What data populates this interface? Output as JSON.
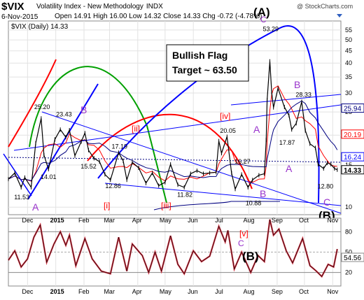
{
  "header": {
    "symbol": "$VIX",
    "name": "Volatility Index - New Methodology",
    "exchange": "INDX",
    "date": "6-Nov-2015",
    "ohlc": "Open 14.91  High 16.00  Low 14.32  Close 14.33  Chg -0.72 (-4.78%)",
    "watermark": "@ StockCharts.com",
    "legend": "$VIX (Daily) 14.33"
  },
  "colors": {
    "price": "#000000",
    "blue": "#0000ff",
    "red": "#ff0000",
    "green": "#00a000",
    "navy": "#000080",
    "annot": "#9933cc",
    "osc": "#d03040"
  },
  "annotations": {
    "box_line1": "Bullish Flag",
    "box_line2": "Target ~ 63.50",
    "wave_A_big": "(A)",
    "wave_B_big": "(B)",
    "wave_B_osc": "(B)",
    "wave_C_top": "C",
    "wave_B_sep": "B",
    "wave_B_dec": "B",
    "wave_A_nov": "A",
    "wave_A_jul": "A",
    "wave_B_aug": "B",
    "wave_A_oct": "A",
    "wave_C_nov": "C",
    "wave_v_osc": "[v]",
    "wave_C_osc": "C",
    "w_i": "[i]",
    "w_ii": "[ii]",
    "w_iii": "[iii]",
    "w_iv": "[iv]"
  },
  "price_labels": [
    {
      "text": "25.20",
      "x": "2014-12-16",
      "y": 25.2
    },
    {
      "text": "23.43",
      "x": "2015-01-09",
      "y": 23.43
    },
    {
      "text": "15.52",
      "x": "2015-02-05",
      "y": 15.52
    },
    {
      "text": "14.01",
      "x": "2014-12-23",
      "y": 14.01
    },
    {
      "text": "11.53",
      "x": "2014-11-24",
      "y": 11.53
    },
    {
      "text": "12.86",
      "x": "2015-03-04",
      "y": 12.86
    },
    {
      "text": "17.19",
      "x": "2015-03-11",
      "y": 17.19
    },
    {
      "text": "11.82",
      "x": "2015-05-22",
      "y": 11.82
    },
    {
      "text": "20.05",
      "x": "2015-07-08",
      "y": 20.05
    },
    {
      "text": "16.27",
      "x": "2015-07-24",
      "y": 16.27
    },
    {
      "text": "10.88",
      "x": "2015-08-05",
      "y": 10.88
    },
    {
      "text": "53.29",
      "x": "2015-08-24",
      "y": 53.29
    },
    {
      "text": "28.33",
      "x": "2015-09-29",
      "y": 28.33
    },
    {
      "text": "17.87",
      "x": "2015-09-11",
      "y": 17.87
    },
    {
      "text": "12.80",
      "x": "2015-10-23",
      "y": 12.8
    }
  ],
  "right_labels": [
    {
      "text": "25.94",
      "y": 25.94,
      "color": "#000080",
      "bg": "#ffffff"
    },
    {
      "text": "20.19",
      "y": 20.19,
      "color": "#ff0000",
      "bg": "#ffffff"
    },
    {
      "text": "16.24",
      "y": 16.24,
      "color": "#0000ff",
      "bg": "#ffffff"
    },
    {
      "text": "14.33",
      "y": 14.33,
      "color": "#000000",
      "bg": "#ffffff"
    }
  ],
  "osc_right_label": "54.56",
  "x_ticks": [
    "Dec",
    "2015",
    "Feb",
    "Mar",
    "Apr",
    "May",
    "Jun",
    "Jul",
    "Aug",
    "Sep",
    "Oct",
    "Nov"
  ],
  "chart_data": {
    "type": "line",
    "title": "$VIX Volatility Index - New Methodology INDX",
    "xlabel": "",
    "ylabel": "",
    "y_scale": "log",
    "ylim": [
      9.3,
      60
    ],
    "y_ticks": [
      10,
      15,
      20,
      25,
      30,
      35,
      40,
      45,
      50,
      55
    ],
    "grid": true,
    "x_range": [
      "2014-11-10",
      "2015-11-10"
    ],
    "series": [
      {
        "name": "$VIX (Daily)",
        "points": [
          [
            "2014-11-10",
            13.1
          ],
          [
            "2014-11-17",
            13.9
          ],
          [
            "2014-11-24",
            12.1
          ],
          [
            "2014-11-28",
            13.3
          ],
          [
            "2014-12-05",
            12.1
          ],
          [
            "2014-12-10",
            18.5
          ],
          [
            "2014-12-16",
            23.5
          ],
          [
            "2014-12-19",
            16.5
          ],
          [
            "2014-12-24",
            14.4
          ],
          [
            "2014-12-31",
            19.2
          ],
          [
            "2015-01-06",
            21.1
          ],
          [
            "2015-01-12",
            19.6
          ],
          [
            "2015-01-16",
            21.0
          ],
          [
            "2015-01-22",
            16.4
          ],
          [
            "2015-01-29",
            18.8
          ],
          [
            "2015-02-02",
            20.4
          ],
          [
            "2015-02-06",
            17.3
          ],
          [
            "2015-02-12",
            16.0
          ],
          [
            "2015-02-18",
            15.5
          ],
          [
            "2015-02-24",
            13.7
          ],
          [
            "2015-03-02",
            13.0
          ],
          [
            "2015-03-11",
            16.9
          ],
          [
            "2015-03-16",
            15.6
          ],
          [
            "2015-03-20",
            13.0
          ],
          [
            "2015-03-26",
            15.4
          ],
          [
            "2015-04-02",
            14.6
          ],
          [
            "2015-04-10",
            12.6
          ],
          [
            "2015-04-17",
            13.9
          ],
          [
            "2015-04-24",
            12.3
          ],
          [
            "2015-05-01",
            12.7
          ],
          [
            "2015-05-07",
            15.1
          ],
          [
            "2015-05-15",
            12.4
          ],
          [
            "2015-05-22",
            12.1
          ],
          [
            "2015-05-29",
            13.8
          ],
          [
            "2015-06-05",
            14.2
          ],
          [
            "2015-06-12",
            13.8
          ],
          [
            "2015-06-19",
            13.9
          ],
          [
            "2015-06-26",
            14.0
          ],
          [
            "2015-06-29",
            18.9
          ],
          [
            "2015-07-02",
            16.8
          ],
          [
            "2015-07-08",
            19.7
          ],
          [
            "2015-07-13",
            13.9
          ],
          [
            "2015-07-17",
            11.9
          ],
          [
            "2015-07-24",
            13.7
          ],
          [
            "2015-07-31",
            12.1
          ],
          [
            "2015-08-05",
            13.0
          ],
          [
            "2015-08-12",
            13.6
          ],
          [
            "2015-08-18",
            13.8
          ],
          [
            "2015-08-20",
            19.1
          ],
          [
            "2015-08-21",
            28.0
          ],
          [
            "2015-08-24",
            40.7
          ],
          [
            "2015-08-26",
            30.3
          ],
          [
            "2015-08-28",
            26.1
          ],
          [
            "2015-09-02",
            31.4
          ],
          [
            "2015-09-09",
            26.2
          ],
          [
            "2015-09-14",
            24.2
          ],
          [
            "2015-09-17",
            21.1
          ],
          [
            "2015-09-22",
            22.4
          ],
          [
            "2015-09-28",
            27.6
          ],
          [
            "2015-10-02",
            20.9
          ],
          [
            "2015-10-07",
            18.4
          ],
          [
            "2015-10-13",
            17.7
          ],
          [
            "2015-10-16",
            15.1
          ],
          [
            "2015-10-22",
            14.5
          ],
          [
            "2015-10-26",
            15.3
          ],
          [
            "2015-10-30",
            15.1
          ],
          [
            "2015-11-03",
            14.5
          ],
          [
            "2015-11-06",
            14.33
          ]
        ]
      }
    ],
    "oscillator": {
      "ylim": [
        0,
        100
      ],
      "y_ticks": [
        20,
        50,
        80
      ],
      "points": [
        [
          "2014-11-10",
          38
        ],
        [
          "2014-11-17",
          52
        ],
        [
          "2014-11-24",
          28
        ],
        [
          "2014-12-01",
          40
        ],
        [
          "2014-12-08",
          72
        ],
        [
          "2014-12-15",
          90
        ],
        [
          "2014-12-22",
          35
        ],
        [
          "2014-12-30",
          62
        ],
        [
          "2015-01-06",
          80
        ],
        [
          "2015-01-12",
          60
        ],
        [
          "2015-01-16",
          75
        ],
        [
          "2015-01-23",
          30
        ],
        [
          "2015-02-02",
          70
        ],
        [
          "2015-02-10",
          40
        ],
        [
          "2015-02-20",
          22
        ],
        [
          "2015-03-02",
          18
        ],
        [
          "2015-03-11",
          72
        ],
        [
          "2015-03-20",
          22
        ],
        [
          "2015-03-26",
          62
        ],
        [
          "2015-04-06",
          45
        ],
        [
          "2015-04-13",
          20
        ],
        [
          "2015-04-20",
          50
        ],
        [
          "2015-04-27",
          22
        ],
        [
          "2015-05-07",
          74
        ],
        [
          "2015-05-15",
          32
        ],
        [
          "2015-05-22",
          18
        ],
        [
          "2015-06-01",
          52
        ],
        [
          "2015-06-10",
          36
        ],
        [
          "2015-06-19",
          44
        ],
        [
          "2015-06-29",
          88
        ],
        [
          "2015-07-06",
          65
        ],
        [
          "2015-07-09",
          82
        ],
        [
          "2015-07-16",
          25
        ],
        [
          "2015-07-24",
          50
        ],
        [
          "2015-08-03",
          20
        ],
        [
          "2015-08-11",
          45
        ],
        [
          "2015-08-18",
          36
        ],
        [
          "2015-08-24",
          98
        ],
        [
          "2015-08-28",
          75
        ],
        [
          "2015-09-03",
          84
        ],
        [
          "2015-09-11",
          52
        ],
        [
          "2015-09-18",
          34
        ],
        [
          "2015-09-29",
          70
        ],
        [
          "2015-10-07",
          30
        ],
        [
          "2015-10-14",
          22
        ],
        [
          "2015-10-20",
          14
        ],
        [
          "2015-10-27",
          32
        ],
        [
          "2015-11-02",
          28
        ],
        [
          "2015-11-06",
          54.56
        ]
      ]
    }
  }
}
